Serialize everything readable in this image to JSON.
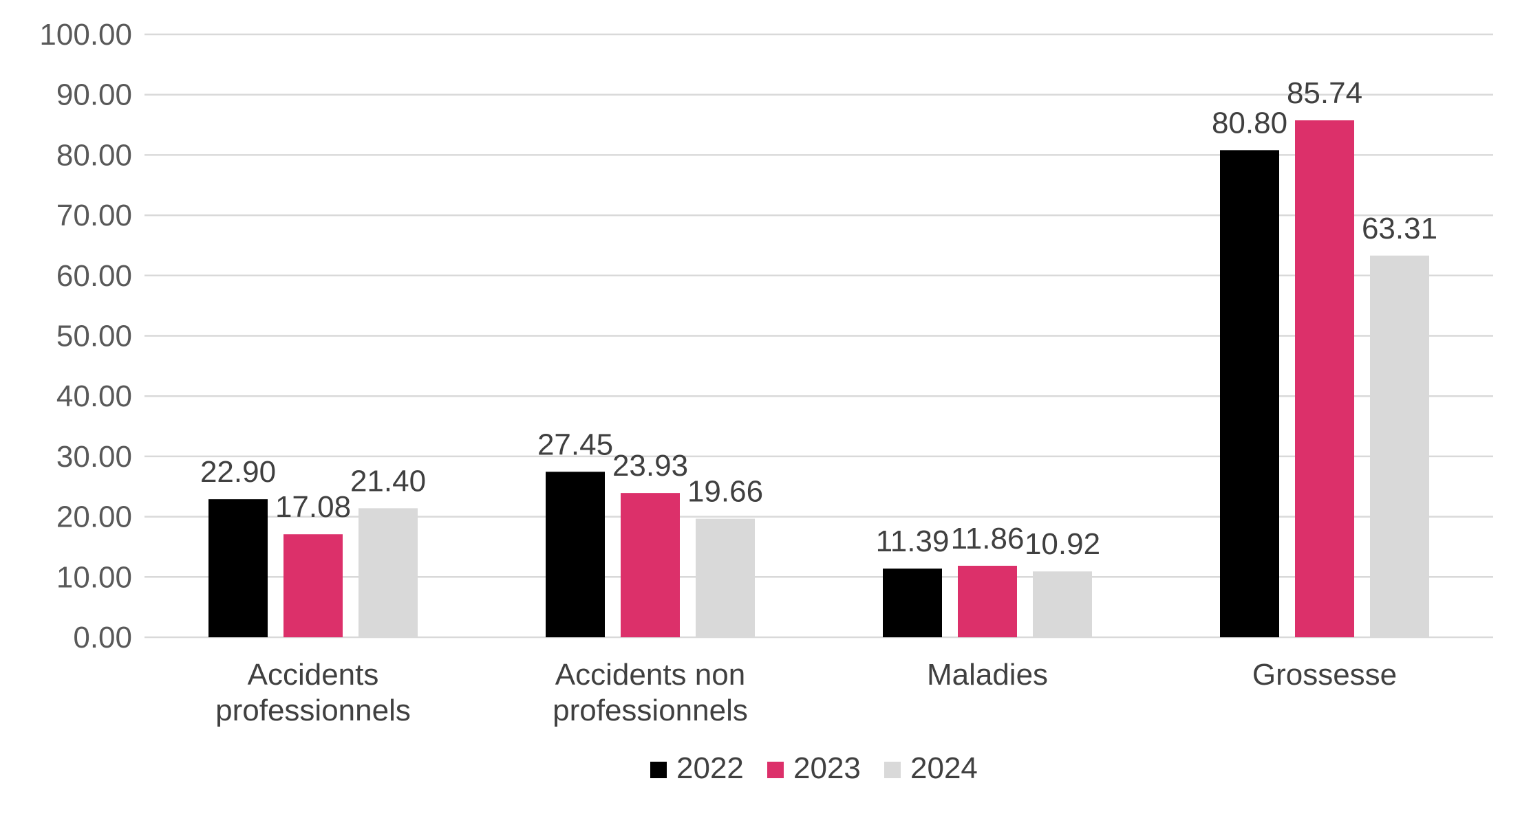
{
  "chart_data": {
    "type": "bar",
    "categories": [
      [
        "Accidents",
        "professionnels"
      ],
      [
        "Accidents non",
        "professionnels"
      ],
      [
        "Maladies"
      ],
      [
        "Grossesse"
      ]
    ],
    "series": [
      {
        "name": "2022",
        "color": "#000000",
        "values": [
          22.9,
          27.45,
          11.39,
          80.8
        ]
      },
      {
        "name": "2023",
        "color": "#dc306a",
        "values": [
          17.08,
          23.93,
          11.86,
          85.74
        ]
      },
      {
        "name": "2024",
        "color": "#d9d9d9",
        "values": [
          21.4,
          19.66,
          10.92,
          63.31
        ]
      }
    ],
    "ylim": [
      0,
      100
    ],
    "yticks": [
      0,
      10,
      20,
      30,
      40,
      50,
      60,
      70,
      80,
      90,
      100
    ],
    "tick_decimals": 2,
    "grid": true,
    "legend_position": "bottom",
    "title": "",
    "xlabel": "",
    "ylabel": ""
  }
}
